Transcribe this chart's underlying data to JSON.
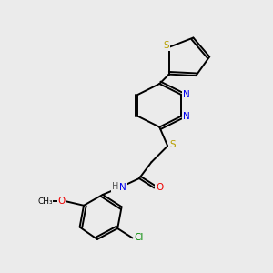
{
  "background_color": "#ebebeb",
  "bond_color": "#000000",
  "atom_colors": {
    "S": "#b8a000",
    "N": "#0000ee",
    "O": "#ee0000",
    "Cl": "#008800",
    "H": "#555555"
  },
  "lw": 1.4
}
